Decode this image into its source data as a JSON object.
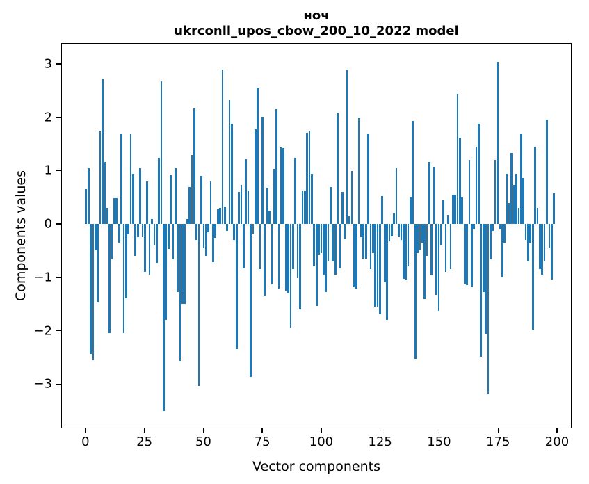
{
  "figure": {
    "title_line1": "ноч",
    "title_line2": "ukrconll_upos_cbow_200_10_2022 model",
    "xlabel": "Vector components",
    "ylabel": "Components values"
  },
  "chart_data": {
    "type": "bar",
    "title": "ноч",
    "subtitle": "ukrconll_upos_cbow_200_10_2022 model",
    "xlabel": "Vector components",
    "ylabel": "Components values",
    "bar_color": "#1f77b4",
    "grid": false,
    "legend": null,
    "xlim": [
      -10.3,
      206.2
    ],
    "ylim": [
      -3.83,
      3.39
    ],
    "x_ticks": [
      0,
      25,
      50,
      75,
      100,
      125,
      150,
      175,
      200
    ],
    "y_ticks": [
      3,
      2,
      1,
      0,
      -1,
      -2,
      -3
    ],
    "bar_width": 0.8,
    "n_components": 200,
    "values": [
      0.65,
      1.05,
      -2.45,
      -2.55,
      -0.5,
      -1.48,
      1.75,
      2.72,
      1.16,
      0.3,
      -2.05,
      -0.67,
      0.48,
      0.48,
      -0.35,
      1.7,
      -2.05,
      -1.4,
      -0.2,
      1.7,
      0.95,
      -0.6,
      -0.25,
      1.05,
      -0.25,
      -0.9,
      0.8,
      -0.95,
      0.1,
      -0.4,
      -0.73,
      1.25,
      2.68,
      -3.52,
      -1.8,
      -0.47,
      0.92,
      -0.67,
      1.05,
      -1.28,
      -2.58,
      -1.5,
      -1.5,
      0.1,
      0.7,
      1.3,
      2.18,
      -0.3,
      -3.04,
      0.9,
      -0.45,
      -0.6,
      -0.15,
      0.8,
      -0.72,
      -0.26,
      0.28,
      0.3,
      2.9,
      0.33,
      -0.13,
      2.33,
      1.88,
      -0.3,
      -2.35,
      0.6,
      0.74,
      -0.84,
      1.22,
      0.63,
      -2.88,
      -0.2,
      1.78,
      2.57,
      -0.85,
      2.02,
      -1.35,
      0.68,
      0.25,
      -1.14,
      1.03,
      2.16,
      -1.22,
      1.44,
      1.43,
      -1.25,
      -1.3,
      -1.95,
      -0.85,
      1.25,
      -1.02,
      -1.61,
      0.63,
      0.63,
      1.72,
      1.74,
      0.95,
      -0.8,
      -1.54,
      -0.57,
      -0.55,
      -0.95,
      -1.28,
      -0.7,
      0.7,
      -0.7,
      -0.95,
      2.08,
      -0.83,
      0.6,
      -0.28,
      2.9,
      0.15,
      1.0,
      -1.19,
      -1.22,
      2.0,
      -0.25,
      -0.65,
      -0.65,
      1.7,
      -0.85,
      -0.55,
      -1.55,
      -1.55,
      -1.7,
      0.52,
      -1.09,
      -1.8,
      -0.33,
      -0.23,
      0.2,
      1.05,
      -0.25,
      -0.3,
      -1.03,
      -1.05,
      -0.8,
      0.5,
      1.94,
      -2.54,
      -0.55,
      -0.5,
      -0.35,
      -1.41,
      -0.6,
      1.16,
      -0.96,
      1.07,
      -1.33,
      -1.63,
      -0.4,
      0.45,
      -0.9,
      0.17,
      -0.85,
      0.55,
      0.55,
      2.45,
      1.63,
      0.5,
      -1.13,
      -1.15,
      1.2,
      -1.17,
      -0.1,
      1.45,
      1.88,
      -2.5,
      -1.28,
      -2.07,
      -3.2,
      -0.66,
      -0.13,
      1.2,
      3.05,
      -0.1,
      -1.0,
      -0.35,
      0.95,
      0.4,
      1.33,
      0.73,
      0.95,
      0.3,
      1.7,
      0.87,
      -0.3,
      -0.7,
      -0.35,
      -1.98,
      1.45,
      0.3,
      -0.85,
      -0.95,
      -0.7,
      1.97,
      -0.45,
      -1.05,
      0.58
    ]
  }
}
